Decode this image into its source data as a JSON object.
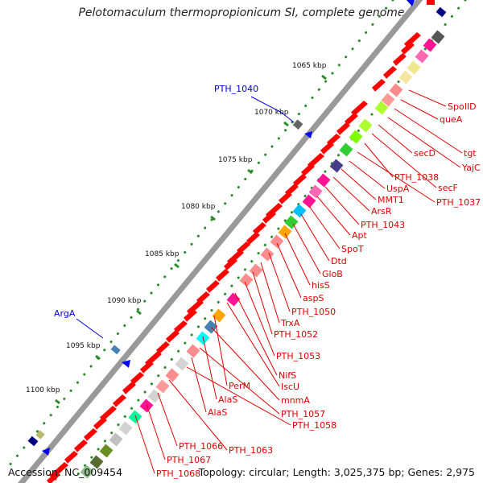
{
  "title": "Pelotomaculum thermopropionicum SI, complete genome",
  "footer": {
    "accession": "Accession: NC_009454",
    "topology": "Topology: circular; Length: 3,025,375 bp; Genes: 2,975"
  },
  "scale_labels": [
    "1065 kbp",
    "1070 kbp",
    "1075 kbp",
    "1080 kbp",
    "1085 kbp",
    "1090 kbp",
    "1095 kbp",
    "1100 kbp"
  ],
  "outer_labels": [
    "PTH_1040",
    "ArgA"
  ],
  "gene_labels": [
    "SpoIID",
    "queA",
    "tgt",
    "YajC",
    "secD",
    "secF",
    "PTH_1038",
    "PTH_1037",
    "UspA",
    "MMT1",
    "ArsR",
    "PTH_1043",
    "Apt",
    "SpoT",
    "Dtd",
    "GloB",
    "hisS",
    "aspS",
    "PTH_1050",
    "TrxA",
    "PTH_1052",
    "PTH_1053",
    "NifS",
    "IscU",
    "PerM",
    "mnmA",
    "AlaS",
    "PTH_1057",
    "AlaS",
    "PTH_1058",
    "PTH_1063",
    "PTH_1066",
    "PTH_1067",
    "PTH_1068"
  ],
  "colors": {
    "label_red": "#e00000",
    "label_blue": "#0000dd",
    "arrow_red": "#ff0000",
    "tick_green": "#2a8a2a",
    "backbone": "#888888"
  }
}
